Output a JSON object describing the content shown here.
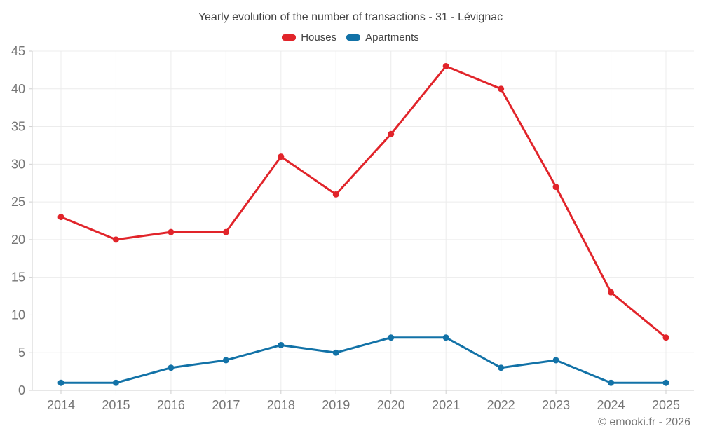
{
  "page": {
    "title": "Yearly evolution of the number of transactions - 31 - Lévignac",
    "attribution": "© emooki.fr - 2026"
  },
  "chart_data": {
    "type": "line",
    "title": "Yearly evolution of the number of transactions - 31 - Lévignac",
    "categories": [
      "2014",
      "2015",
      "2016",
      "2017",
      "2018",
      "2019",
      "2020",
      "2021",
      "2022",
      "2023",
      "2024",
      "2025"
    ],
    "series": [
      {
        "name": "Houses",
        "color": "#e1242a",
        "values": [
          23,
          20,
          21,
          21,
          31,
          26,
          34,
          43,
          40,
          27,
          13,
          7
        ]
      },
      {
        "name": "Apartments",
        "color": "#1272a7",
        "values": [
          1,
          1,
          3,
          4,
          6,
          5,
          7,
          7,
          3,
          4,
          1,
          1
        ]
      }
    ],
    "xlabel": "",
    "ylabel": "",
    "ylim": [
      0,
      45
    ],
    "ytick_step": 5,
    "grid": true,
    "legend_position": "top"
  },
  "colors": {
    "axis": "#cfcfcf",
    "grid": "#ececec",
    "tick_label": "#757575",
    "title_text": "#424242",
    "marker_radius": 4.5,
    "line_width": 3
  }
}
